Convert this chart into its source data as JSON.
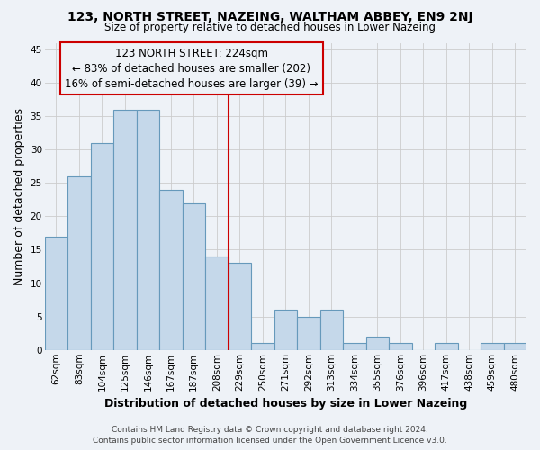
{
  "title": "123, NORTH STREET, NAZEING, WALTHAM ABBEY, EN9 2NJ",
  "subtitle": "Size of property relative to detached houses in Lower Nazeing",
  "xlabel": "Distribution of detached houses by size in Lower Nazeing",
  "ylabel": "Number of detached properties",
  "footer_line1": "Contains HM Land Registry data © Crown copyright and database right 2024.",
  "footer_line2": "Contains public sector information licensed under the Open Government Licence v3.0.",
  "annotation_title": "123 NORTH STREET: 224sqm",
  "annotation_line2": "← 83% of detached houses are smaller (202)",
  "annotation_line3": "16% of semi-detached houses are larger (39) →",
  "vline_idx": 8,
  "bar_color": "#c5d8ea",
  "bar_edgecolor": "#6699bb",
  "vline_color": "#cc0000",
  "annotation_box_edgecolor": "#cc0000",
  "categories": [
    "62sqm",
    "83sqm",
    "104sqm",
    "125sqm",
    "146sqm",
    "167sqm",
    "187sqm",
    "208sqm",
    "229sqm",
    "250sqm",
    "271sqm",
    "292sqm",
    "313sqm",
    "334sqm",
    "355sqm",
    "376sqm",
    "396sqm",
    "417sqm",
    "438sqm",
    "459sqm",
    "480sqm"
  ],
  "values": [
    17,
    26,
    31,
    36,
    36,
    24,
    22,
    14,
    13,
    1,
    6,
    5,
    6,
    1,
    2,
    1,
    0,
    1,
    0,
    1,
    1
  ],
  "ylim": [
    0,
    46
  ],
  "yticks": [
    0,
    5,
    10,
    15,
    20,
    25,
    30,
    35,
    40,
    45
  ],
  "grid_color": "#cccccc",
  "bg_color": "#eef2f7",
  "title_fontsize": 10,
  "subtitle_fontsize": 8.5,
  "tick_fontsize": 7.5,
  "axis_label_fontsize": 9,
  "annotation_fontsize": 8.5,
  "footer_fontsize": 6.5
}
